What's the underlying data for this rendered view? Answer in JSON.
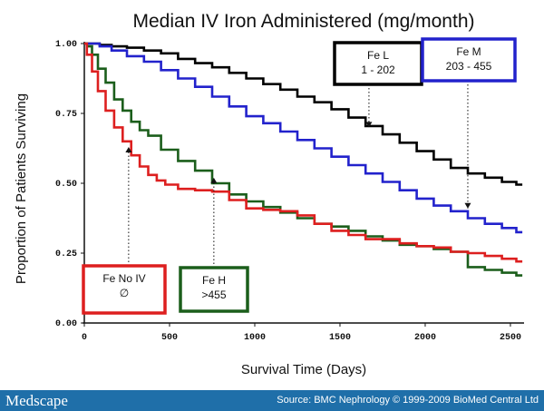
{
  "chart_data": {
    "type": "line",
    "title": "Median IV Iron Administered (mg/month)",
    "xlabel": "Survival Time (Days)",
    "ylabel": "Proportion of Patients Surviving",
    "xlim": [
      0,
      2580
    ],
    "ylim": [
      0,
      1
    ],
    "xticks": [
      0,
      500,
      1000,
      1500,
      2000,
      2500
    ],
    "xtick_labels": [
      "0",
      "500",
      "1000",
      "1500",
      "2000",
      "2500"
    ],
    "yticks": [
      0,
      0.25,
      0.5,
      0.75,
      1
    ],
    "ytick_labels": [
      "0.00",
      "0.25",
      "0.50",
      "0.75",
      "1.00"
    ],
    "grid": false,
    "series": [
      {
        "name": "Fe L 1 - 202",
        "color": "#000000",
        "x": [
          0,
          60,
          120,
          200,
          300,
          400,
          500,
          600,
          700,
          800,
          900,
          1000,
          1100,
          1200,
          1300,
          1400,
          1500,
          1600,
          1700,
          1800,
          1900,
          2000,
          2100,
          2200,
          2300,
          2400,
          2500,
          2570
        ],
        "y": [
          1.0,
          1.0,
          0.995,
          0.99,
          0.985,
          0.975,
          0.965,
          0.945,
          0.93,
          0.915,
          0.895,
          0.875,
          0.855,
          0.835,
          0.81,
          0.79,
          0.765,
          0.735,
          0.705,
          0.675,
          0.645,
          0.615,
          0.585,
          0.555,
          0.535,
          0.52,
          0.505,
          0.495
        ]
      },
      {
        "name": "Fe M 203 - 455",
        "color": "#2222cc",
        "x": [
          0,
          60,
          120,
          200,
          300,
          400,
          500,
          600,
          700,
          800,
          900,
          1000,
          1100,
          1200,
          1300,
          1400,
          1500,
          1600,
          1700,
          1800,
          1900,
          2000,
          2100,
          2200,
          2300,
          2400,
          2500,
          2570
        ],
        "y": [
          1.0,
          1.0,
          0.99,
          0.975,
          0.955,
          0.935,
          0.905,
          0.875,
          0.845,
          0.81,
          0.775,
          0.74,
          0.715,
          0.685,
          0.655,
          0.625,
          0.595,
          0.565,
          0.535,
          0.505,
          0.475,
          0.445,
          0.42,
          0.4,
          0.375,
          0.355,
          0.34,
          0.325
        ]
      },
      {
        "name": "Fe H >455",
        "color": "#1b5e1b",
        "x": [
          0,
          30,
          60,
          100,
          150,
          200,
          250,
          300,
          350,
          400,
          500,
          600,
          700,
          800,
          900,
          1000,
          1100,
          1200,
          1300,
          1400,
          1500,
          1600,
          1700,
          1800,
          1900,
          2000,
          2100,
          2200,
          2300,
          2400,
          2500,
          2570
        ],
        "y": [
          1.0,
          0.99,
          0.96,
          0.91,
          0.86,
          0.8,
          0.76,
          0.72,
          0.69,
          0.67,
          0.62,
          0.58,
          0.545,
          0.5,
          0.46,
          0.435,
          0.415,
          0.395,
          0.375,
          0.355,
          0.345,
          0.33,
          0.31,
          0.295,
          0.28,
          0.275,
          0.265,
          0.255,
          0.2,
          0.19,
          0.18,
          0.17
        ]
      },
      {
        "name": "Fe No IV ∅",
        "color": "#dd1f1f",
        "x": [
          0,
          30,
          60,
          100,
          150,
          200,
          250,
          300,
          350,
          400,
          450,
          500,
          600,
          700,
          800,
          900,
          1000,
          1100,
          1200,
          1300,
          1400,
          1500,
          1600,
          1700,
          1800,
          1900,
          2000,
          2100,
          2200,
          2300,
          2400,
          2500,
          2570
        ],
        "y": [
          1.0,
          0.96,
          0.9,
          0.83,
          0.76,
          0.7,
          0.65,
          0.6,
          0.56,
          0.53,
          0.51,
          0.495,
          0.48,
          0.475,
          0.47,
          0.44,
          0.41,
          0.405,
          0.4,
          0.385,
          0.355,
          0.33,
          0.315,
          0.3,
          0.3,
          0.285,
          0.275,
          0.27,
          0.255,
          0.25,
          0.24,
          0.23,
          0.22
        ]
      }
    ],
    "annotations": [
      {
        "name": "fe-l",
        "lines": [
          "Fe L",
          "1 - 202"
        ],
        "border": "#000000",
        "target_x": 1670,
        "target_y": 0.7
      },
      {
        "name": "fe-m",
        "lines": [
          "Fe M",
          "203 - 455"
        ],
        "border": "#2222cc",
        "target_x": 2250,
        "target_y": 0.41
      },
      {
        "name": "fe-no-iv",
        "lines": [
          "Fe  No IV",
          "∅"
        ],
        "border": "#dd1f1f",
        "target_x": 260,
        "target_y": 0.63
      },
      {
        "name": "fe-h",
        "lines": [
          "Fe H",
          ">455"
        ],
        "border": "#1b5e1b",
        "target_x": 760,
        "target_y": 0.52
      }
    ]
  },
  "footer": {
    "brand": "Medscape",
    "source": "Source: BMC Nephrology © 1999-2009 BioMed Central Ltd"
  }
}
